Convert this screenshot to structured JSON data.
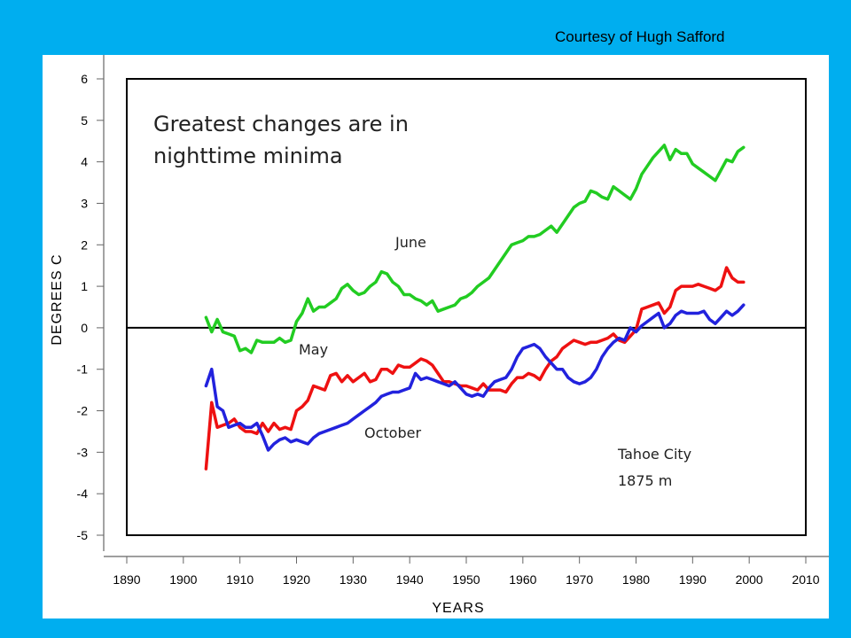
{
  "credit": "Courtesy of Hugh Safford",
  "chart_data": {
    "type": "line",
    "xlabel": "YEARS",
    "ylabel": "DEGREES C",
    "xlim": [
      1890,
      2010
    ],
    "ylim": [
      -5,
      6
    ],
    "xticks": [
      1890,
      1900,
      1910,
      1920,
      1930,
      1940,
      1950,
      1960,
      1970,
      1980,
      1990,
      2000,
      2010
    ],
    "yticks": [
      6,
      5,
      4,
      3,
      2,
      1,
      0,
      -1,
      -2,
      -3,
      -4,
      -5
    ],
    "zero_line": 0,
    "annotations": {
      "headline_1": "Greatest changes are in",
      "headline_2": "nighttime minima",
      "station_1": "Tahoe City",
      "station_2": "1875 m"
    },
    "series": [
      {
        "name": "June",
        "color": "#22cc22",
        "x": [
          1904,
          1905,
          1906,
          1907,
          1908,
          1909,
          1910,
          1911,
          1912,
          1913,
          1914,
          1915,
          1916,
          1917,
          1918,
          1919,
          1920,
          1921,
          1922,
          1923,
          1924,
          1925,
          1926,
          1927,
          1928,
          1929,
          1930,
          1931,
          1932,
          1933,
          1934,
          1935,
          1936,
          1937,
          1938,
          1939,
          1940,
          1941,
          1942,
          1943,
          1944,
          1945,
          1946,
          1947,
          1948,
          1949,
          1950,
          1951,
          1952,
          1953,
          1954,
          1955,
          1956,
          1957,
          1958,
          1959,
          1960,
          1961,
          1962,
          1963,
          1964,
          1965,
          1966,
          1967,
          1968,
          1969,
          1970,
          1971,
          1972,
          1973,
          1974,
          1975,
          1976,
          1977,
          1978,
          1979,
          1980,
          1981,
          1982,
          1983,
          1984,
          1985,
          1986,
          1987,
          1988,
          1989,
          1990,
          1991,
          1992,
          1993,
          1994,
          1995,
          1996,
          1997,
          1998,
          1999
        ],
        "values": [
          0.25,
          -0.1,
          0.2,
          -0.1,
          -0.15,
          -0.2,
          -0.55,
          -0.5,
          -0.6,
          -0.3,
          -0.35,
          -0.35,
          -0.35,
          -0.25,
          -0.35,
          -0.3,
          0.15,
          0.35,
          0.7,
          0.4,
          0.5,
          0.5,
          0.6,
          0.7,
          0.95,
          1.05,
          0.9,
          0.8,
          0.85,
          1.0,
          1.1,
          1.35,
          1.3,
          1.1,
          1.0,
          0.8,
          0.8,
          0.7,
          0.65,
          0.55,
          0.65,
          0.4,
          0.45,
          0.5,
          0.55,
          0.7,
          0.75,
          0.85,
          1.0,
          1.1,
          1.2,
          1.4,
          1.6,
          1.8,
          2.0,
          2.05,
          2.1,
          2.2,
          2.2,
          2.25,
          2.35,
          2.45,
          2.3,
          2.5,
          2.7,
          2.9,
          3.0,
          3.05,
          3.3,
          3.25,
          3.15,
          3.1,
          3.4,
          3.3,
          3.2,
          3.1,
          3.35,
          3.7,
          3.9,
          4.1,
          4.25,
          4.4,
          4.05,
          4.3,
          4.2,
          4.2,
          3.95,
          3.85,
          3.75,
          3.65,
          3.55,
          3.8,
          4.05,
          4.0,
          4.25,
          4.35
        ]
      },
      {
        "name": "May",
        "color": "#ee1111",
        "x": [
          1904,
          1905,
          1906,
          1907,
          1908,
          1909,
          1910,
          1911,
          1912,
          1913,
          1914,
          1915,
          1916,
          1917,
          1918,
          1919,
          1920,
          1921,
          1922,
          1923,
          1924,
          1925,
          1926,
          1927,
          1928,
          1929,
          1930,
          1931,
          1932,
          1933,
          1934,
          1935,
          1936,
          1937,
          1938,
          1939,
          1940,
          1941,
          1942,
          1943,
          1944,
          1945,
          1946,
          1947,
          1948,
          1949,
          1950,
          1951,
          1952,
          1953,
          1954,
          1955,
          1956,
          1957,
          1958,
          1959,
          1960,
          1961,
          1962,
          1963,
          1964,
          1965,
          1966,
          1967,
          1968,
          1969,
          1970,
          1971,
          1972,
          1973,
          1974,
          1975,
          1976,
          1977,
          1978,
          1979,
          1980,
          1981,
          1982,
          1983,
          1984,
          1985,
          1986,
          1987,
          1988,
          1989,
          1990,
          1991,
          1992,
          1993,
          1994,
          1995,
          1996,
          1997,
          1998,
          1999
        ],
        "values": [
          -3.4,
          -1.8,
          -2.4,
          -2.35,
          -2.3,
          -2.2,
          -2.4,
          -2.5,
          -2.5,
          -2.55,
          -2.3,
          -2.5,
          -2.3,
          -2.45,
          -2.4,
          -2.45,
          -2.0,
          -1.9,
          -1.75,
          -1.4,
          -1.45,
          -1.5,
          -1.15,
          -1.1,
          -1.3,
          -1.15,
          -1.3,
          -1.2,
          -1.1,
          -1.3,
          -1.25,
          -1.0,
          -1.0,
          -1.1,
          -0.9,
          -0.95,
          -0.95,
          -0.85,
          -0.75,
          -0.8,
          -0.9,
          -1.1,
          -1.3,
          -1.3,
          -1.35,
          -1.4,
          -1.4,
          -1.45,
          -1.5,
          -1.35,
          -1.5,
          -1.5,
          -1.5,
          -1.55,
          -1.35,
          -1.2,
          -1.2,
          -1.1,
          -1.15,
          -1.25,
          -1.0,
          -0.8,
          -0.7,
          -0.5,
          -0.4,
          -0.3,
          -0.35,
          -0.4,
          -0.35,
          -0.35,
          -0.3,
          -0.25,
          -0.15,
          -0.3,
          -0.35,
          -0.2,
          -0.05,
          0.45,
          0.5,
          0.55,
          0.6,
          0.35,
          0.5,
          0.9,
          1.0,
          1.0,
          1.0,
          1.05,
          1.0,
          0.95,
          0.9,
          1.0,
          1.45,
          1.2,
          1.1,
          1.1
        ]
      },
      {
        "name": "October",
        "color": "#2222dd",
        "x": [
          1904,
          1905,
          1906,
          1907,
          1908,
          1909,
          1910,
          1911,
          1912,
          1913,
          1914,
          1915,
          1916,
          1917,
          1918,
          1919,
          1920,
          1921,
          1922,
          1923,
          1924,
          1925,
          1926,
          1927,
          1928,
          1929,
          1930,
          1931,
          1932,
          1933,
          1934,
          1935,
          1936,
          1937,
          1938,
          1939,
          1940,
          1941,
          1942,
          1943,
          1944,
          1945,
          1946,
          1947,
          1948,
          1949,
          1950,
          1951,
          1952,
          1953,
          1954,
          1955,
          1956,
          1957,
          1958,
          1959,
          1960,
          1961,
          1962,
          1963,
          1964,
          1965,
          1966,
          1967,
          1968,
          1969,
          1970,
          1971,
          1972,
          1973,
          1974,
          1975,
          1976,
          1977,
          1978,
          1979,
          1980,
          1981,
          1982,
          1983,
          1984,
          1985,
          1986,
          1987,
          1988,
          1989,
          1990,
          1991,
          1992,
          1993,
          1994,
          1995,
          1996,
          1997,
          1998,
          1999
        ],
        "values": [
          -1.4,
          -1.0,
          -1.9,
          -2.0,
          -2.4,
          -2.35,
          -2.3,
          -2.4,
          -2.4,
          -2.3,
          -2.6,
          -2.95,
          -2.8,
          -2.7,
          -2.65,
          -2.75,
          -2.7,
          -2.75,
          -2.8,
          -2.65,
          -2.55,
          -2.5,
          -2.45,
          -2.4,
          -2.35,
          -2.3,
          -2.2,
          -2.1,
          -2.0,
          -1.9,
          -1.8,
          -1.65,
          -1.6,
          -1.55,
          -1.55,
          -1.5,
          -1.45,
          -1.1,
          -1.25,
          -1.2,
          -1.25,
          -1.3,
          -1.35,
          -1.4,
          -1.3,
          -1.45,
          -1.6,
          -1.65,
          -1.6,
          -1.65,
          -1.45,
          -1.3,
          -1.25,
          -1.2,
          -1.0,
          -0.7,
          -0.5,
          -0.45,
          -0.4,
          -0.5,
          -0.7,
          -0.85,
          -1.0,
          -1.0,
          -1.2,
          -1.3,
          -1.35,
          -1.3,
          -1.2,
          -1.0,
          -0.7,
          -0.5,
          -0.35,
          -0.25,
          -0.3,
          0.0,
          -0.1,
          0.05,
          0.15,
          0.25,
          0.35,
          0.0,
          0.1,
          0.3,
          0.4,
          0.35,
          0.35,
          0.35,
          0.4,
          0.2,
          0.1,
          0.25,
          0.4,
          0.3,
          0.4,
          0.55
        ]
      }
    ]
  }
}
